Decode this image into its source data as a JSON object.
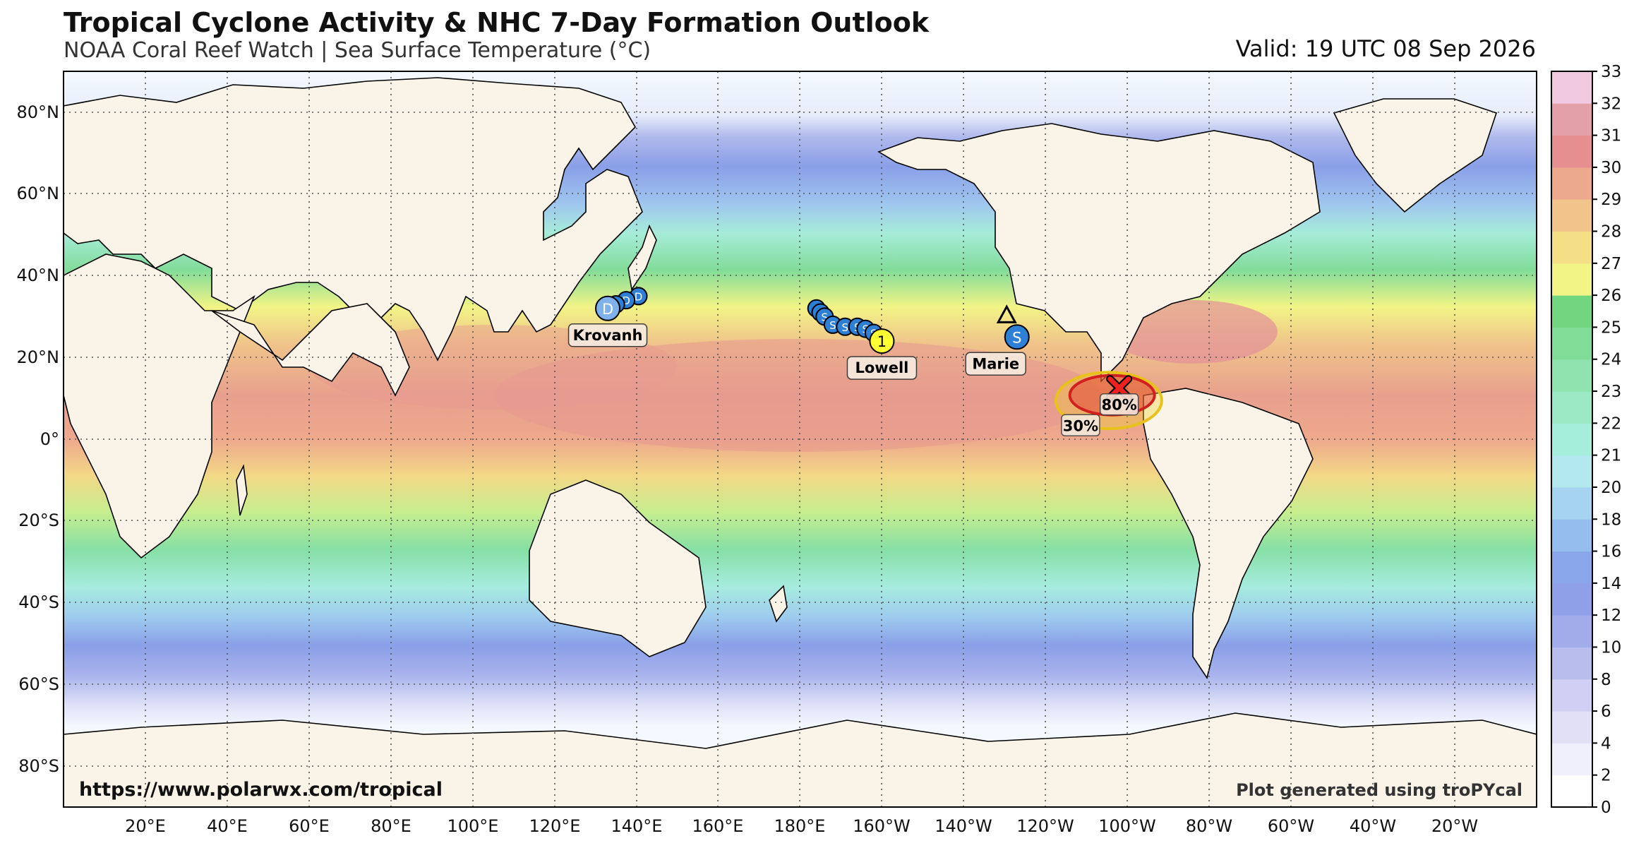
{
  "header": {
    "title": "Tropical Cyclone Activity & NHC 7-Day Formation Outlook",
    "subtitle": "NOAA Coral Reef Watch | Sea Surface Temperature (°C)",
    "valid": "Valid: 19 UTC 08 Sep 2026"
  },
  "map": {
    "projection": "plate-carree",
    "lon_range": [
      0,
      360
    ],
    "lat_range": [
      -90,
      90
    ],
    "lat_labels": [
      "80°N",
      "60°N",
      "40°N",
      "20°N",
      "0°",
      "20°S",
      "40°S",
      "60°S",
      "80°S"
    ],
    "lon_labels": [
      "20°E",
      "40°E",
      "60°E",
      "80°E",
      "100°E",
      "120°E",
      "140°E",
      "160°E",
      "180°E",
      "160°W",
      "140°W",
      "120°W",
      "100°W",
      "80°W",
      "60°W",
      "40°W",
      "20°W"
    ],
    "url": "https://www.polarwx.com/tropical",
    "credit": "Plot generated using troPYcal"
  },
  "storms": [
    {
      "name": "Krovanh",
      "type": "D",
      "color": "#7fb2ea",
      "lon": 133,
      "lat": 32,
      "track": [
        [
          140.5,
          35
        ],
        [
          137.5,
          34
        ],
        [
          135,
          33
        ],
        [
          133,
          32
        ]
      ]
    },
    {
      "name": "Lowell",
      "type": "1",
      "color": "#ffff33",
      "lon": 200,
      "lat": 24,
      "track": [
        [
          184,
          32
        ],
        [
          185,
          31
        ],
        [
          186,
          30
        ],
        [
          188,
          28
        ],
        [
          191,
          27.5
        ],
        [
          194,
          27.5
        ],
        [
          196,
          27
        ],
        [
          198,
          26
        ],
        [
          200,
          24
        ]
      ]
    },
    {
      "name": "Marie",
      "type": "S",
      "color": "#2e7fd6",
      "lon": 233,
      "lat": 25,
      "track": [
        [
          233,
          25
        ]
      ],
      "triangle": {
        "lon": 230.5,
        "lat": 30
      }
    }
  ],
  "outlook": [
    {
      "label": "30%",
      "color": "#f2d42a",
      "lon": 252,
      "lat": 6
    },
    {
      "label": "80%",
      "color": "#e23030",
      "lon": 258,
      "lat": 8
    }
  ],
  "colorbar": {
    "unit": "°C",
    "ticks": [
      "0",
      "2",
      "4",
      "6",
      "8",
      "10",
      "12",
      "14",
      "16",
      "18",
      "20",
      "21",
      "22",
      "23",
      "24",
      "25",
      "26",
      "27",
      "28",
      "29",
      "30",
      "31",
      "32",
      "33"
    ],
    "colors": [
      "#ffffff",
      "#efeefb",
      "#e2e0f7",
      "#cfd0f3",
      "#b8bdee",
      "#a2acea",
      "#8f9fe8",
      "#8aa6ea",
      "#95bdee",
      "#a5d3f0",
      "#b3e8ef",
      "#a6eedc",
      "#9be8c5",
      "#8ee3ae",
      "#80dc97",
      "#72d681",
      "#f2f486",
      "#f4de86",
      "#f0c48a",
      "#eda98d",
      "#e68f91",
      "#e3a0a9",
      "#f0c8df"
    ]
  }
}
